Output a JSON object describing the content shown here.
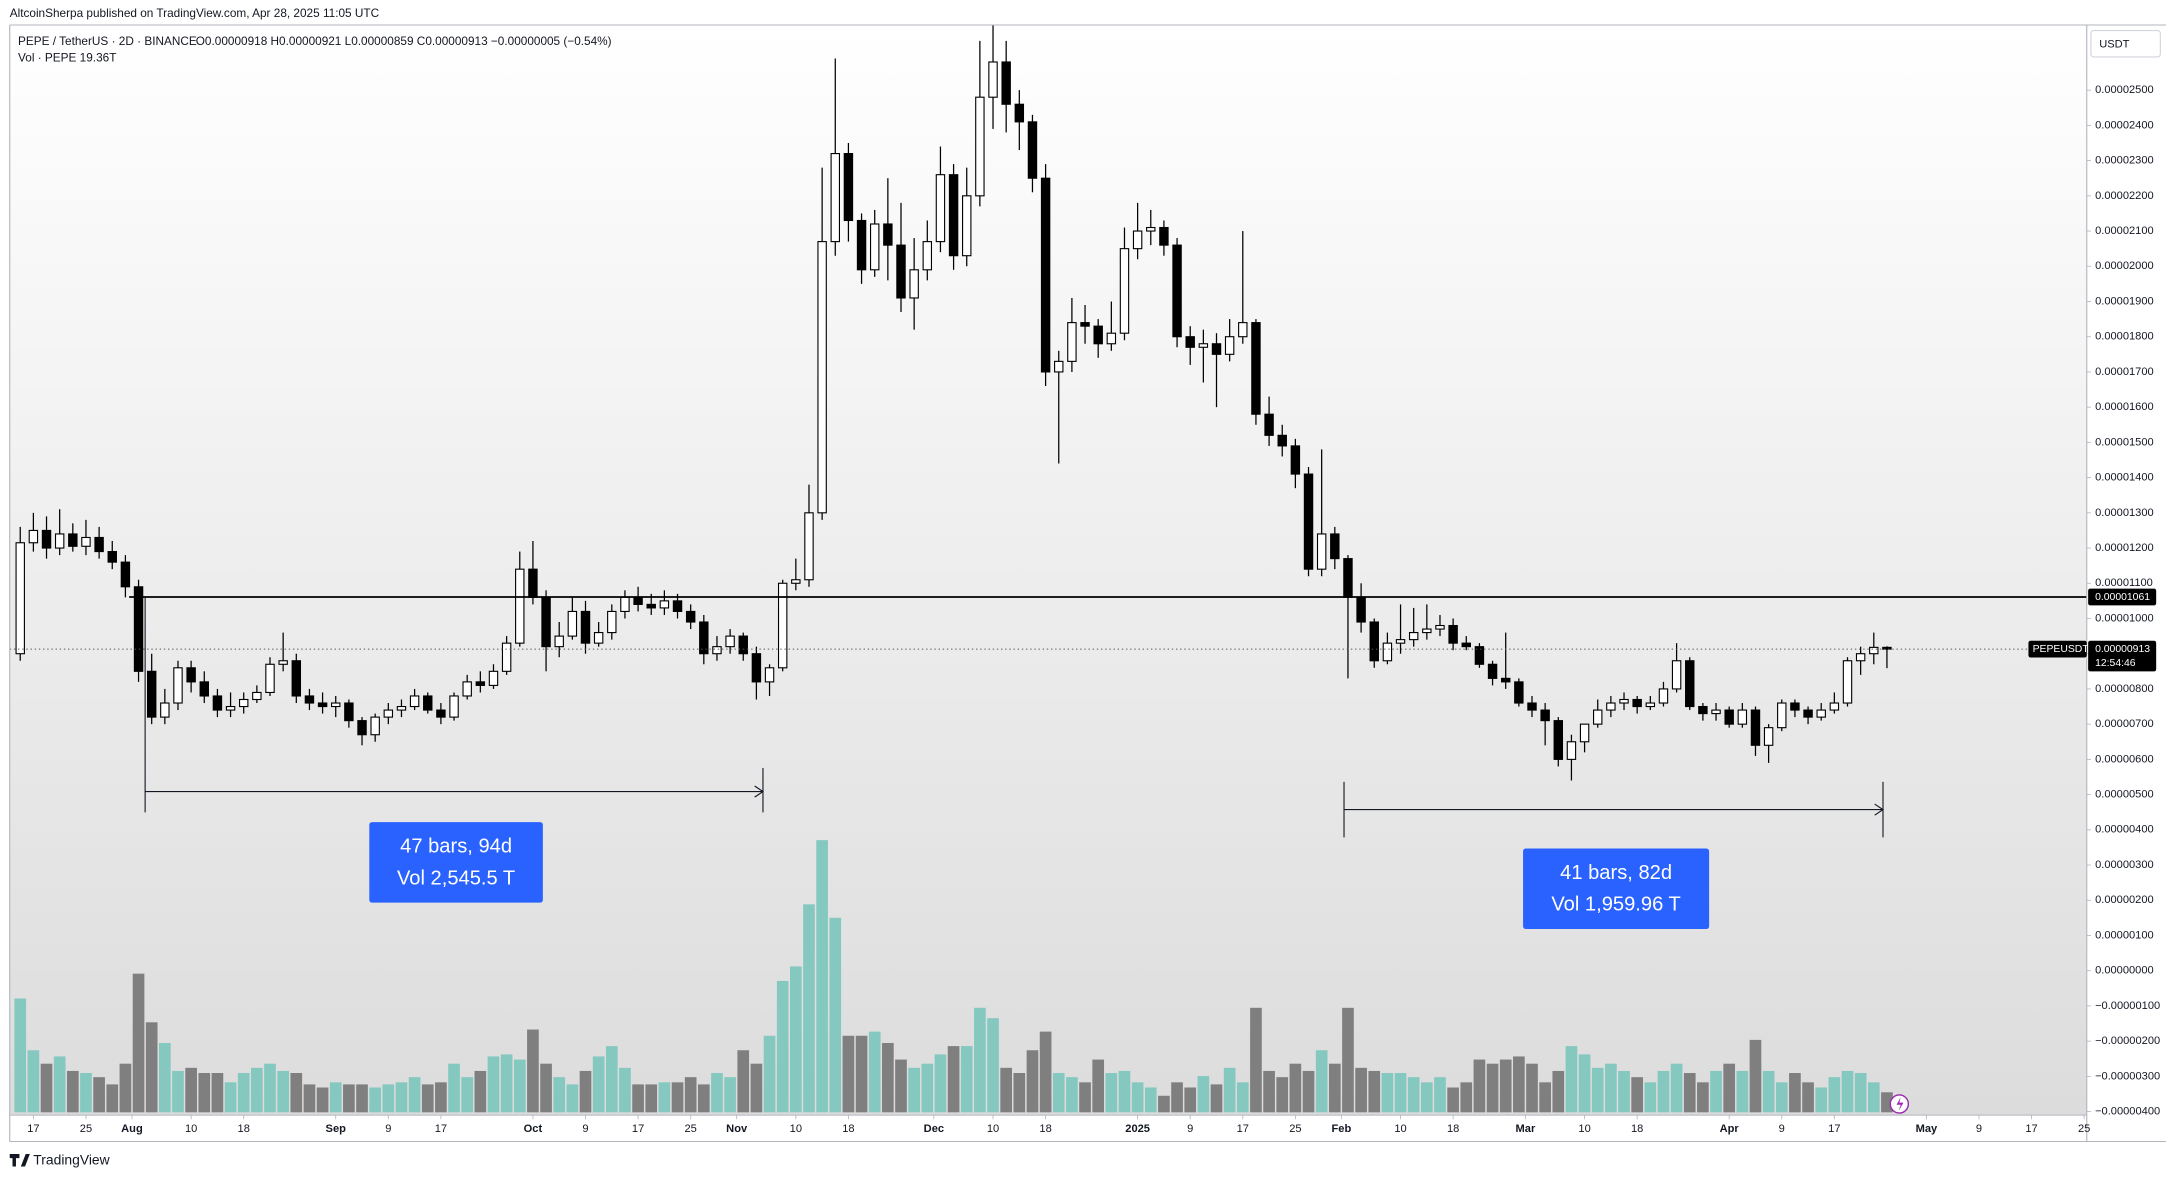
{
  "header": {
    "publisher": "AltcoinSherpa published on TradingView.com, Apr 28, 2025 11:05 UTC",
    "brand": "TradingView"
  },
  "chart_data": {
    "type": "candlestick",
    "symbol": "PEPE / TetherUS · 2D · BINANCE",
    "ohlc_legend": "O0.00000918 H0.00000921 L0.00000859 C0.00000913 −0.00000005 (−0.54%)",
    "volume_legend": "Vol · PEPE 19.36T",
    "currency": "USDT",
    "up_color": "#ffffff",
    "down_color": "#000000",
    "border_color": "#000000",
    "ylim": [
      -4.1e-06,
      2.685e-05
    ],
    "yticks": [
      {
        "value": 2.5e-05,
        "label": "0.00002500"
      },
      {
        "value": 2.4e-05,
        "label": "0.00002400"
      },
      {
        "value": 2.3e-05,
        "label": "0.00002300"
      },
      {
        "value": 2.2e-05,
        "label": "0.00002200"
      },
      {
        "value": 2.1e-05,
        "label": "0.00002100"
      },
      {
        "value": 2e-05,
        "label": "0.00002000"
      },
      {
        "value": 1.9e-05,
        "label": "0.00001900"
      },
      {
        "value": 1.8e-05,
        "label": "0.00001800"
      },
      {
        "value": 1.7e-05,
        "label": "0.00001700"
      },
      {
        "value": 1.6e-05,
        "label": "0.00001600"
      },
      {
        "value": 1.5e-05,
        "label": "0.00001500"
      },
      {
        "value": 1.4e-05,
        "label": "0.00001400"
      },
      {
        "value": 1.3e-05,
        "label": "0.00001300"
      },
      {
        "value": 1.2e-05,
        "label": "0.00001200"
      },
      {
        "value": 1.1e-05,
        "label": "0.00001100"
      },
      {
        "value": 1e-05,
        "label": "0.00001000"
      },
      {
        "value": 9e-06,
        "label": "0.00000900"
      },
      {
        "value": 8e-06,
        "label": "0.00000800"
      },
      {
        "value": 7e-06,
        "label": "0.00000700"
      },
      {
        "value": 6e-06,
        "label": "0.00000600"
      },
      {
        "value": 5e-06,
        "label": "0.00000500"
      },
      {
        "value": 4e-06,
        "label": "0.00000400"
      },
      {
        "value": 3e-06,
        "label": "0.00000300"
      },
      {
        "value": 2e-06,
        "label": "0.00000200"
      },
      {
        "value": 1e-06,
        "label": "0.00000100"
      },
      {
        "value": 0,
        "label": "0.00000000"
      },
      {
        "value": -1e-06,
        "label": "−0.00000100"
      },
      {
        "value": -2e-06,
        "label": "−0.00000200"
      },
      {
        "value": -3e-06,
        "label": "−0.00000300"
      },
      {
        "value": -4e-06,
        "label": "−0.00000400"
      }
    ],
    "xlim": [
      -0.8,
      157.2
    ],
    "xticks": [
      {
        "value": 1,
        "label": "17"
      },
      {
        "value": 5,
        "label": "25"
      },
      {
        "value": 8.5,
        "label": "Aug"
      },
      {
        "value": 13,
        "label": "10"
      },
      {
        "value": 17,
        "label": "18"
      },
      {
        "value": 24,
        "label": "Sep"
      },
      {
        "value": 28,
        "label": "9"
      },
      {
        "value": 32,
        "label": "17"
      },
      {
        "value": 39,
        "label": "Oct"
      },
      {
        "value": 43,
        "label": "9"
      },
      {
        "value": 47,
        "label": "17"
      },
      {
        "value": 51,
        "label": "25"
      },
      {
        "value": 54.5,
        "label": "Nov"
      },
      {
        "value": 59,
        "label": "10"
      },
      {
        "value": 63,
        "label": "18"
      },
      {
        "value": 69.5,
        "label": "Dec"
      },
      {
        "value": 74,
        "label": "10"
      },
      {
        "value": 78,
        "label": "18"
      },
      {
        "value": 85,
        "label": "2025"
      },
      {
        "value": 89,
        "label": "9"
      },
      {
        "value": 93,
        "label": "17"
      },
      {
        "value": 97,
        "label": "25"
      },
      {
        "value": 100.5,
        "label": "Feb"
      },
      {
        "value": 105,
        "label": "10"
      },
      {
        "value": 109,
        "label": "18"
      },
      {
        "value": 114.5,
        "label": "Mar"
      },
      {
        "value": 119,
        "label": "10"
      },
      {
        "value": 123,
        "label": "18"
      },
      {
        "value": 130,
        "label": "Apr"
      },
      {
        "value": 134,
        "label": "9"
      },
      {
        "value": 138,
        "label": "17"
      },
      {
        "value": 145,
        "label": "May"
      },
      {
        "value": 149,
        "label": "9"
      },
      {
        "value": 153,
        "label": "17"
      },
      {
        "value": 157,
        "label": "25"
      }
    ],
    "ohlc": [
      [
        9e-06,
        1.26e-05,
        8.8e-06,
        1.215e-05
      ],
      [
        1.215e-05,
        1.3e-05,
        1.19e-05,
        1.25e-05
      ],
      [
        1.25e-05,
        1.29e-05,
        1.17e-05,
        1.2e-05
      ],
      [
        1.2e-05,
        1.31e-05,
        1.18e-05,
        1.24e-05
      ],
      [
        1.24e-05,
        1.27e-05,
        1.19e-05,
        1.205e-05
      ],
      [
        1.205e-05,
        1.28e-05,
        1.18e-05,
        1.23e-05
      ],
      [
        1.23e-05,
        1.26e-05,
        1.17e-05,
        1.19e-05
      ],
      [
        1.19e-05,
        1.22e-05,
        1.14e-05,
        1.16e-05
      ],
      [
        1.16e-05,
        1.18e-05,
        1.06e-05,
        1.09e-05
      ],
      [
        1.09e-05,
        1.11e-05,
        8.2e-06,
        8.5e-06
      ],
      [
        8.5e-06,
        9e-06,
        7e-06,
        7.2e-06
      ],
      [
        7.2e-06,
        8e-06,
        7e-06,
        7.6e-06
      ],
      [
        7.6e-06,
        8.8e-06,
        7.4e-06,
        8.6e-06
      ],
      [
        8.6e-06,
        8.8e-06,
        7.9e-06,
        8.2e-06
      ],
      [
        8.2e-06,
        8.5e-06,
        7.6e-06,
        7.8e-06
      ],
      [
        7.8e-06,
        8e-06,
        7.2e-06,
        7.4e-06
      ],
      [
        7.4e-06,
        7.9e-06,
        7.2e-06,
        7.5e-06
      ],
      [
        7.5e-06,
        7.9e-06,
        7.3e-06,
        7.7e-06
      ],
      [
        7.7e-06,
        8.1e-06,
        7.6e-06,
        7.9e-06
      ],
      [
        7.9e-06,
        8.9e-06,
        7.8e-06,
        8.7e-06
      ],
      [
        8.7e-06,
        9.6e-06,
        8.5e-06,
        8.8e-06
      ],
      [
        8.8e-06,
        9e-06,
        7.6e-06,
        7.8e-06
      ],
      [
        7.8e-06,
        8e-06,
        7.4e-06,
        7.6e-06
      ],
      [
        7.6e-06,
        7.9e-06,
        7.3e-06,
        7.5e-06
      ],
      [
        7.5e-06,
        7.8e-06,
        7.2e-06,
        7.6e-06
      ],
      [
        7.6e-06,
        7.7e-06,
        6.9e-06,
        7.1e-06
      ],
      [
        7.1e-06,
        7.2e-06,
        6.4e-06,
        6.7e-06
      ],
      [
        6.7e-06,
        7.3e-06,
        6.5e-06,
        7.2e-06
      ],
      [
        7.2e-06,
        7.6e-06,
        7e-06,
        7.4e-06
      ],
      [
        7.4e-06,
        7.7e-06,
        7.2e-06,
        7.5e-06
      ],
      [
        7.5e-06,
        8e-06,
        7.4e-06,
        7.8e-06
      ],
      [
        7.8e-06,
        7.9e-06,
        7.3e-06,
        7.4e-06
      ],
      [
        7.4e-06,
        7.6e-06,
        7e-06,
        7.2e-06
      ],
      [
        7.2e-06,
        7.9e-06,
        7.1e-06,
        7.8e-06
      ],
      [
        7.8e-06,
        8.4e-06,
        7.7e-06,
        8.2e-06
      ],
      [
        8.2e-06,
        8.5e-06,
        7.9e-06,
        8.1e-06
      ],
      [
        8.1e-06,
        8.7e-06,
        8e-06,
        8.5e-06
      ],
      [
        8.5e-06,
        9.5e-06,
        8.4e-06,
        9.3e-06
      ],
      [
        9.3e-06,
        1.19e-05,
        9.2e-06,
        1.14e-05
      ],
      [
        1.14e-05,
        1.22e-05,
        1.04e-05,
        1.06e-05
      ],
      [
        1.06e-05,
        1.08e-05,
        8.5e-06,
        9.2e-06
      ],
      [
        9.2e-06,
        9.9e-06,
        8.9e-06,
        9.5e-06
      ],
      [
        9.5e-06,
        1.06e-05,
        9.4e-06,
        1.02e-05
      ],
      [
        1.02e-05,
        1.05e-05,
        9e-06,
        9.3e-06
      ],
      [
        9.3e-06,
        9.9e-06,
        9.2e-06,
        9.6e-06
      ],
      [
        9.6e-06,
        1.04e-05,
        9.4e-06,
        1.02e-05
      ],
      [
        1.02e-05,
        1.08e-05,
        1e-05,
        1.06e-05
      ],
      [
        1.06e-05,
        1.09e-05,
        1.02e-05,
        1.04e-05
      ],
      [
        1.04e-05,
        1.07e-05,
        1.01e-05,
        1.03e-05
      ],
      [
        1.03e-05,
        1.08e-05,
        1.01e-05,
        1.05e-05
      ],
      [
        1.05e-05,
        1.07e-05,
        1e-05,
        1.02e-05
      ],
      [
        1.02e-05,
        1.04e-05,
        9.7e-06,
        9.9e-06
      ],
      [
        9.9e-06,
        1.01e-05,
        8.7e-06,
        9e-06
      ],
      [
        9e-06,
        9.5e-06,
        8.8e-06,
        9.2e-06
      ],
      [
        9.2e-06,
        9.7e-06,
        9e-06,
        9.5e-06
      ],
      [
        9.5e-06,
        9.6e-06,
        8.8e-06,
        9e-06
      ],
      [
        9e-06,
        9.2e-06,
        7.7e-06,
        8.2e-06
      ],
      [
        8.2e-06,
        8.7e-06,
        7.8e-06,
        8.6e-06
      ],
      [
        8.6e-06,
        1.11e-05,
        8.5e-06,
        1.1e-05
      ],
      [
        1.1e-05,
        1.17e-05,
        1.08e-05,
        1.11e-05
      ],
      [
        1.11e-05,
        1.38e-05,
        1.09e-05,
        1.3e-05
      ],
      [
        1.3e-05,
        2.28e-05,
        1.28e-05,
        2.07e-05
      ],
      [
        2.07e-05,
        2.59e-05,
        2.03e-05,
        2.32e-05
      ],
      [
        2.32e-05,
        2.35e-05,
        2.07e-05,
        2.13e-05
      ],
      [
        2.13e-05,
        2.15e-05,
        1.95e-05,
        1.99e-05
      ],
      [
        1.99e-05,
        2.16e-05,
        1.97e-05,
        2.12e-05
      ],
      [
        2.12e-05,
        2.25e-05,
        1.96e-05,
        2.06e-05
      ],
      [
        2.06e-05,
        2.18e-05,
        1.87e-05,
        1.91e-05
      ],
      [
        1.91e-05,
        2.08e-05,
        1.82e-05,
        1.99e-05
      ],
      [
        1.99e-05,
        2.13e-05,
        1.96e-05,
        2.07e-05
      ],
      [
        2.07e-05,
        2.34e-05,
        2.04e-05,
        2.26e-05
      ],
      [
        2.26e-05,
        2.29e-05,
        1.99e-05,
        2.03e-05
      ],
      [
        2.03e-05,
        2.28e-05,
        2e-05,
        2.2e-05
      ],
      [
        2.2e-05,
        2.64e-05,
        2.17e-05,
        2.48e-05
      ],
      [
        2.48e-05,
        2.69e-05,
        2.39e-05,
        2.58e-05
      ],
      [
        2.58e-05,
        2.64e-05,
        2.38e-05,
        2.46e-05
      ],
      [
        2.46e-05,
        2.5e-05,
        2.33e-05,
        2.41e-05
      ],
      [
        2.41e-05,
        2.43e-05,
        2.21e-05,
        2.25e-05
      ],
      [
        2.25e-05,
        2.29e-05,
        1.66e-05,
        1.7e-05
      ],
      [
        1.7e-05,
        1.76e-05,
        1.44e-05,
        1.73e-05
      ],
      [
        1.73e-05,
        1.91e-05,
        1.7e-05,
        1.84e-05
      ],
      [
        1.84e-05,
        1.89e-05,
        1.78e-05,
        1.83e-05
      ],
      [
        1.83e-05,
        1.85e-05,
        1.74e-05,
        1.78e-05
      ],
      [
        1.78e-05,
        1.9e-05,
        1.76e-05,
        1.81e-05
      ],
      [
        1.81e-05,
        2.11e-05,
        1.79e-05,
        2.05e-05
      ],
      [
        2.05e-05,
        2.18e-05,
        2.02e-05,
        2.1e-05
      ],
      [
        2.1e-05,
        2.16e-05,
        2.06e-05,
        2.11e-05
      ],
      [
        2.11e-05,
        2.13e-05,
        2.03e-05,
        2.06e-05
      ],
      [
        2.06e-05,
        2.08e-05,
        1.77e-05,
        1.8e-05
      ],
      [
        1.8e-05,
        1.83e-05,
        1.72e-05,
        1.77e-05
      ],
      [
        1.77e-05,
        1.82e-05,
        1.67e-05,
        1.78e-05
      ],
      [
        1.78e-05,
        1.81e-05,
        1.6e-05,
        1.75e-05
      ],
      [
        1.75e-05,
        1.85e-05,
        1.73e-05,
        1.8e-05
      ],
      [
        1.8e-05,
        2.1e-05,
        1.78e-05,
        1.84e-05
      ],
      [
        1.84e-05,
        1.85e-05,
        1.55e-05,
        1.58e-05
      ],
      [
        1.58e-05,
        1.63e-05,
        1.49e-05,
        1.52e-05
      ],
      [
        1.52e-05,
        1.55e-05,
        1.46e-05,
        1.49e-05
      ],
      [
        1.49e-05,
        1.51e-05,
        1.37e-05,
        1.41e-05
      ],
      [
        1.41e-05,
        1.43e-05,
        1.12e-05,
        1.14e-05
      ],
      [
        1.14e-05,
        1.48e-05,
        1.12e-05,
        1.24e-05
      ],
      [
        1.24e-05,
        1.26e-05,
        1.14e-05,
        1.17e-05
      ],
      [
        1.17e-05,
        1.18e-05,
        8.3e-06,
        1.06e-05
      ],
      [
        1.06e-05,
        1.1e-05,
        9.6e-06,
        9.9e-06
      ],
      [
        9.9e-06,
        1e-05,
        8.6e-06,
        8.8e-06
      ],
      [
        8.8e-06,
        9.6e-06,
        8.7e-06,
        9.3e-06
      ],
      [
        9.3e-06,
        1.04e-05,
        9e-06,
        9.4e-06
      ],
      [
        9.4e-06,
        1.03e-05,
        9.2e-06,
        9.6e-06
      ],
      [
        9.6e-06,
        1.04e-05,
        9.4e-06,
        9.7e-06
      ],
      [
        9.7e-06,
        1.01e-05,
        9.5e-06,
        9.8e-06
      ],
      [
        9.8e-06,
        1e-05,
        9.1e-06,
        9.3e-06
      ],
      [
        9.3e-06,
        9.5e-06,
        9.1e-06,
        9.2e-06
      ],
      [
        9.2e-06,
        9.3e-06,
        8.6e-06,
        8.7e-06
      ],
      [
        8.7e-06,
        8.8e-06,
        8.1e-06,
        8.3e-06
      ],
      [
        8.3e-06,
        9.6e-06,
        8e-06,
        8.2e-06
      ],
      [
        8.2e-06,
        8.3e-06,
        7.5e-06,
        7.6e-06
      ],
      [
        7.6e-06,
        7.8e-06,
        7.2e-06,
        7.4e-06
      ],
      [
        7.4e-06,
        7.6e-06,
        6.4e-06,
        7.1e-06
      ],
      [
        7.1e-06,
        7.2e-06,
        5.8e-06,
        6e-06
      ],
      [
        6e-06,
        6.7e-06,
        5.4e-06,
        6.5e-06
      ],
      [
        6.5e-06,
        7e-06,
        6.2e-06,
        7e-06
      ],
      [
        7e-06,
        7.7e-06,
        6.9e-06,
        7.4e-06
      ],
      [
        7.4e-06,
        7.8e-06,
        7.2e-06,
        7.6e-06
      ],
      [
        7.6e-06,
        7.9e-06,
        7.4e-06,
        7.7e-06
      ],
      [
        7.7e-06,
        7.8e-06,
        7.3e-06,
        7.5e-06
      ],
      [
        7.5e-06,
        7.8e-06,
        7.4e-06,
        7.6e-06
      ],
      [
        7.6e-06,
        8.2e-06,
        7.5e-06,
        8e-06
      ],
      [
        8e-06,
        9.3e-06,
        7.9e-06,
        8.8e-06
      ],
      [
        8.8e-06,
        8.9e-06,
        7.4e-06,
        7.5e-06
      ],
      [
        7.5e-06,
        7.6e-06,
        7.1e-06,
        7.3e-06
      ],
      [
        7.3e-06,
        7.6e-06,
        7.1e-06,
        7.4e-06
      ],
      [
        7.4e-06,
        7.5e-06,
        6.9e-06,
        7e-06
      ],
      [
        7e-06,
        7.6e-06,
        6.9e-06,
        7.4e-06
      ],
      [
        7.4e-06,
        7.5e-06,
        6.1e-06,
        6.4e-06
      ],
      [
        6.4e-06,
        7e-06,
        5.9e-06,
        6.9e-06
      ],
      [
        6.9e-06,
        7.7e-06,
        6.8e-06,
        7.6e-06
      ],
      [
        7.6e-06,
        7.7e-06,
        7.2e-06,
        7.4e-06
      ],
      [
        7.4e-06,
        7.5e-06,
        7e-06,
        7.2e-06
      ],
      [
        7.2e-06,
        7.6e-06,
        7.1e-06,
        7.4e-06
      ],
      [
        7.4e-06,
        7.9e-06,
        7.3e-06,
        7.6e-06
      ],
      [
        7.6e-06,
        8.9e-06,
        7.5e-06,
        8.8e-06
      ],
      [
        8.8e-06,
        9.2e-06,
        8.4e-06,
        9e-06
      ],
      [
        9e-06,
        9.6e-06,
        8.7e-06,
        9.18e-06
      ],
      [
        9.18e-06,
        9.21e-06,
        8.59e-06,
        9.13e-06
      ]
    ],
    "volume": {
      "up_color": "#84c8c0",
      "down_color": "#7f7f7f",
      "values": [
        110,
        60,
        47,
        54,
        40,
        38,
        34,
        27,
        47,
        134,
        87,
        67,
        40,
        43,
        38,
        38,
        29,
        38,
        43,
        47,
        40,
        38,
        27,
        24,
        29,
        27,
        27,
        24,
        27,
        29,
        34,
        27,
        29,
        47,
        34,
        40,
        54,
        56,
        51,
        80,
        47,
        34,
        27,
        40,
        54,
        64,
        43,
        27,
        27,
        29,
        29,
        34,
        27,
        38,
        34,
        60,
        47,
        74,
        127,
        141,
        201,
        263,
        188,
        74,
        74,
        78,
        67,
        51,
        43,
        47,
        56,
        64,
        64,
        101,
        91,
        43,
        38,
        60,
        78,
        38,
        34,
        29,
        51,
        38,
        40,
        29,
        24,
        16,
        29,
        24,
        35,
        27,
        43,
        29,
        101,
        40,
        34,
        47,
        40,
        60,
        47,
        101,
        43,
        40,
        38,
        38,
        34,
        29,
        34,
        24,
        29,
        51,
        47,
        51,
        54,
        47,
        29,
        40,
        64,
        56,
        43,
        47,
        40,
        34,
        29,
        40,
        47,
        38,
        29,
        40,
        47,
        40,
        70,
        40,
        29,
        38,
        29,
        24,
        34,
        40,
        38,
        29,
        19.36
      ]
    },
    "level": {
      "value": 1.061e-05,
      "label": "0.00001061"
    },
    "last_price": {
      "value": 9.13e-06,
      "label": "0.00000913"
    },
    "symbol_tag": "PEPEUSDT",
    "countdown": "12:54:46",
    "annotations": [
      {
        "line1": "47 bars, 94d",
        "line2": "Vol 2,545.5 T"
      },
      {
        "line1": "41 bars, 82d",
        "line2": "Vol 1,959.96 T"
      }
    ]
  }
}
